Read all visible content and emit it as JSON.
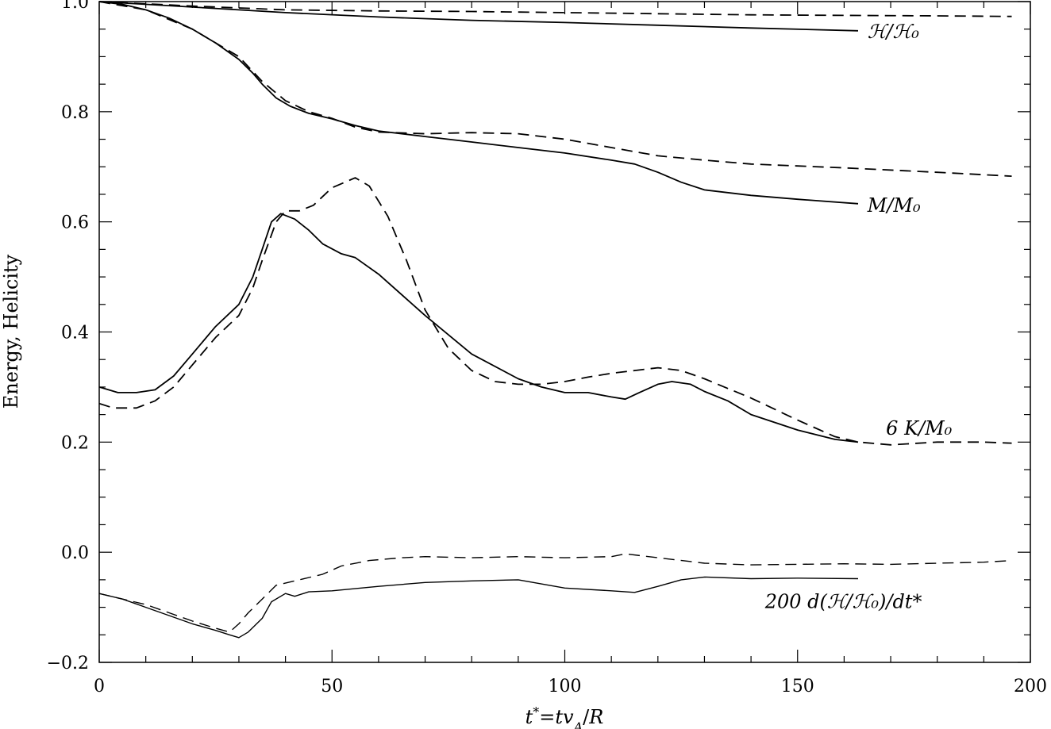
{
  "chart_data": {
    "type": "line",
    "xlabel": "t*=tv_A/R",
    "ylabel": "Energy, Helicity",
    "xlim": [
      0,
      200
    ],
    "ylim": [
      -0.2,
      1.0
    ],
    "x_ticks": [
      0,
      50,
      100,
      150,
      200
    ],
    "x_tick_labels": [
      "0",
      "50",
      "100",
      "150",
      "200"
    ],
    "y_ticks": [
      -0.2,
      0.0,
      0.2,
      0.4,
      0.6,
      0.8,
      1.0
    ],
    "y_tick_labels": [
      "−0.2",
      "0.0",
      "0.2",
      "0.4",
      "0.6",
      "0.8",
      "1.0"
    ],
    "grid": false,
    "annotations": [
      {
        "text": "ℋ/ℋ₀",
        "x": 165,
        "y": 0.945
      },
      {
        "text": "M/M₀",
        "x": 165,
        "y": 0.63
      },
      {
        "text": "6 K/M₀",
        "x": 169,
        "y": 0.225
      },
      {
        "text": "200 d(ℋ/ℋ₀)/dt*",
        "x": 143,
        "y": -0.09
      }
    ],
    "series": [
      {
        "id": "helicity_solid",
        "style": "solid",
        "x": [
          0,
          20,
          40,
          60,
          80,
          100,
          120,
          140,
          163
        ],
        "y": [
          1.0,
          0.99,
          0.98,
          0.972,
          0.966,
          0.962,
          0.957,
          0.952,
          0.947
        ]
      },
      {
        "id": "helicity_dashed",
        "style": "dashed",
        "x": [
          0,
          20,
          40,
          60,
          80,
          100,
          120,
          140,
          160,
          180,
          196
        ],
        "y": [
          1.0,
          0.992,
          0.985,
          0.983,
          0.982,
          0.98,
          0.978,
          0.976,
          0.975,
          0.974,
          0.973
        ]
      },
      {
        "id": "magnetic_solid",
        "style": "solid",
        "x": [
          0,
          5,
          10,
          15,
          20,
          25,
          30,
          33,
          35,
          38,
          41,
          45,
          50,
          55,
          60,
          70,
          80,
          90,
          100,
          110,
          115,
          120,
          125,
          130,
          140,
          150,
          163
        ],
        "y": [
          1.0,
          0.995,
          0.985,
          0.97,
          0.95,
          0.925,
          0.895,
          0.87,
          0.85,
          0.825,
          0.81,
          0.797,
          0.787,
          0.775,
          0.765,
          0.755,
          0.745,
          0.735,
          0.725,
          0.712,
          0.705,
          0.69,
          0.672,
          0.658,
          0.648,
          0.641,
          0.633
        ]
      },
      {
        "id": "magnetic_dashed",
        "style": "dashed",
        "x": [
          0,
          10,
          20,
          30,
          35,
          40,
          45,
          50,
          55,
          60,
          70,
          80,
          90,
          100,
          110,
          120,
          130,
          140,
          160,
          180,
          196
        ],
        "y": [
          1.0,
          0.985,
          0.95,
          0.9,
          0.855,
          0.82,
          0.8,
          0.788,
          0.772,
          0.763,
          0.76,
          0.762,
          0.76,
          0.75,
          0.735,
          0.72,
          0.712,
          0.705,
          0.698,
          0.69,
          0.683
        ]
      },
      {
        "id": "kinetic_solid",
        "style": "solid",
        "x": [
          0,
          4,
          8,
          12,
          16,
          20,
          25,
          30,
          33,
          35,
          37,
          39,
          42,
          45,
          48,
          52,
          55,
          60,
          70,
          80,
          90,
          95,
          100,
          105,
          110,
          113,
          116,
          120,
          123,
          127,
          130,
          135,
          140,
          150,
          158,
          163
        ],
        "y": [
          0.3,
          0.29,
          0.29,
          0.295,
          0.32,
          0.36,
          0.41,
          0.45,
          0.5,
          0.55,
          0.6,
          0.615,
          0.605,
          0.585,
          0.56,
          0.542,
          0.535,
          0.505,
          0.43,
          0.36,
          0.315,
          0.3,
          0.29,
          0.29,
          0.282,
          0.278,
          0.29,
          0.305,
          0.31,
          0.305,
          0.292,
          0.275,
          0.25,
          0.222,
          0.205,
          0.2
        ]
      },
      {
        "id": "kinetic_dashed",
        "style": "dashed",
        "x": [
          0,
          3,
          8,
          12,
          16,
          20,
          25,
          30,
          33,
          35,
          38,
          40,
          43,
          46,
          50,
          55,
          58,
          62,
          66,
          70,
          75,
          80,
          85,
          90,
          95,
          100,
          105,
          110,
          115,
          120,
          125,
          130,
          140,
          150,
          158,
          163,
          170,
          180,
          190,
          196
        ],
        "y": [
          0.27,
          0.262,
          0.262,
          0.275,
          0.3,
          0.34,
          0.39,
          0.43,
          0.48,
          0.53,
          0.6,
          0.62,
          0.62,
          0.63,
          0.662,
          0.68,
          0.665,
          0.61,
          0.53,
          0.44,
          0.37,
          0.33,
          0.31,
          0.305,
          0.305,
          0.31,
          0.318,
          0.325,
          0.33,
          0.335,
          0.33,
          0.315,
          0.28,
          0.24,
          0.21,
          0.2,
          0.195,
          0.2,
          0.2,
          0.198
        ]
      },
      {
        "id": "dhdt_solid",
        "style": "solid",
        "x": [
          0,
          5,
          10,
          15,
          20,
          25,
          28,
          30,
          32,
          35,
          37,
          40,
          42,
          45,
          50,
          60,
          70,
          80,
          90,
          100,
          110,
          115,
          120,
          125,
          130,
          140,
          150,
          163
        ],
        "y": [
          -0.075,
          -0.085,
          -0.1,
          -0.115,
          -0.13,
          -0.142,
          -0.15,
          -0.155,
          -0.145,
          -0.12,
          -0.09,
          -0.075,
          -0.08,
          -0.072,
          -0.07,
          -0.062,
          -0.055,
          -0.052,
          -0.05,
          -0.065,
          -0.07,
          -0.073,
          -0.062,
          -0.05,
          -0.045,
          -0.048,
          -0.047,
          -0.048
        ]
      },
      {
        "id": "dhdt_dashed",
        "style": "dashed",
        "x": [
          0,
          5,
          10,
          15,
          20,
          25,
          28,
          30,
          32,
          35,
          38,
          42,
          48,
          52,
          58,
          65,
          70,
          80,
          90,
          100,
          110,
          113,
          120,
          130,
          140,
          150,
          160,
          170,
          180,
          190,
          196
        ],
        "y": [
          -0.075,
          -0.085,
          -0.095,
          -0.11,
          -0.125,
          -0.138,
          -0.145,
          -0.13,
          -0.11,
          -0.085,
          -0.06,
          -0.052,
          -0.04,
          -0.025,
          -0.015,
          -0.01,
          -0.008,
          -0.01,
          -0.008,
          -0.01,
          -0.008,
          -0.003,
          -0.01,
          -0.02,
          -0.023,
          -0.022,
          -0.021,
          -0.022,
          -0.02,
          -0.018,
          -0.015
        ]
      }
    ]
  }
}
